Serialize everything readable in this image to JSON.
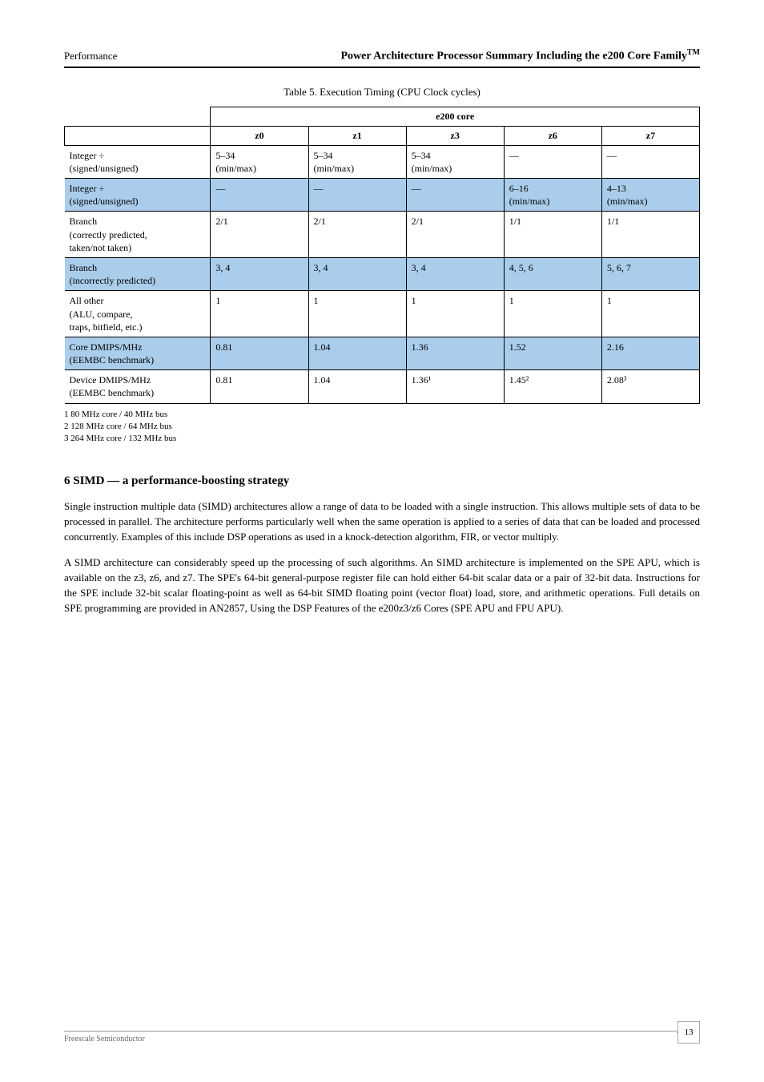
{
  "header": {
    "left": "Performance",
    "product": "Power Architecture Processor Summary Including the e200 Core Family",
    "tm": "TM"
  },
  "table": {
    "caption": "Table 5. Execution Timing (CPU Clock cycles)",
    "group_header": "e200 core",
    "columns": [
      "z0",
      "z1",
      "z3",
      "z6",
      "z7"
    ],
    "col_widths": [
      "15.4%",
      "15.4%",
      "15.4%",
      "15.4%",
      "15.4%"
    ],
    "param_col_width": "23%",
    "shade_color": "#a9cdeb",
    "border_color": "#000000",
    "font_size": 12,
    "rows": [
      {
        "shaded": false,
        "param_lines": [
          "Integer ÷",
          "(signed/unsigned)"
        ],
        "cells": [
          [
            "5–34",
            "(min/max)"
          ],
          [
            "5–34",
            "(min/max)"
          ],
          [
            "5–34",
            "(min/max)"
          ],
          [
            "—",
            ""
          ],
          [
            "—",
            ""
          ]
        ]
      },
      {
        "shaded": true,
        "param_lines": [
          "Integer ÷",
          "(signed/unsigned)"
        ],
        "cells": [
          [
            "—",
            ""
          ],
          [
            "—",
            ""
          ],
          [
            "—",
            ""
          ],
          [
            "6–16",
            "(min/max)"
          ],
          [
            "4–13",
            "(min/max)"
          ]
        ]
      },
      {
        "shaded": false,
        "param_lines": [
          "Branch",
          "(correctly predicted,",
          "taken/not taken)"
        ],
        "cells": [
          [
            "2/1",
            ""
          ],
          [
            "2/1",
            ""
          ],
          [
            "2/1",
            ""
          ],
          [
            "1/1",
            ""
          ],
          [
            "1/1",
            ""
          ]
        ]
      },
      {
        "shaded": true,
        "param_lines": [
          "Branch",
          "(incorrectly predicted)"
        ],
        "cells": [
          [
            "3, 4",
            ""
          ],
          [
            "3, 4",
            ""
          ],
          [
            "3, 4",
            ""
          ],
          [
            "4, 5, 6",
            ""
          ],
          [
            "5, 6, 7",
            ""
          ]
        ]
      },
      {
        "shaded": false,
        "param_lines": [
          "All other",
          "(ALU, compare,",
          "traps, bitfield, etc.)"
        ],
        "cells": [
          [
            "1",
            ""
          ],
          [
            "1",
            ""
          ],
          [
            "1",
            ""
          ],
          [
            "1",
            ""
          ],
          [
            "1",
            ""
          ]
        ]
      },
      {
        "shaded": true,
        "param_lines": [
          "Core DMIPS/MHz",
          "(EEMBC benchmark)"
        ],
        "cells": [
          [
            "0.81",
            ""
          ],
          [
            "1.04",
            ""
          ],
          [
            "1.36",
            ""
          ],
          [
            "1.52",
            ""
          ],
          [
            "2.16",
            ""
          ]
        ]
      },
      {
        "shaded": false,
        "param_lines": [
          "Device DMIPS/MHz",
          "(EEMBC benchmark)"
        ],
        "cells": [
          [
            "0.81",
            ""
          ],
          [
            "1.04",
            ""
          ],
          [
            "1.36¹",
            ""
          ],
          [
            "1.45²",
            ""
          ],
          [
            "2.08³",
            ""
          ]
        ]
      }
    ],
    "footnotes": [
      "1 80 MHz core / 40 MHz bus",
      "2 128 MHz core / 64 MHz bus",
      "3 264 MHz core / 132 MHz bus"
    ]
  },
  "section": {
    "title": "6   SIMD — a performance-boosting strategy",
    "paragraphs": [
      "Single instruction multiple data (SIMD) architectures allow a range of data to be loaded with a single instruction. This allows multiple sets of data to be processed in parallel. The architecture performs particularly well when the same operation is applied to a series of data that can be loaded and processed concurrently. Examples of this include DSP operations as used in a knock-detection algorithm, FIR, or vector multiply.",
      "A SIMD architecture can considerably speed up the processing of such algorithms. An SIMD architecture is implemented on the SPE APU, which is available on the z3, z6, and z7. The SPE's 64-bit general-purpose register file can hold either 64-bit scalar data or a pair of 32-bit data. Instructions for the SPE include 32-bit scalar floating-point as well as 64-bit SIMD floating point (vector float) load, store, and arithmetic operations. Full details on SPE programming are provided in AN2857, Using the DSP Features of the e200z3/z6 Cores (SPE APU and FPU APU)."
    ]
  },
  "footer": {
    "label": "Freescale Semiconductor",
    "page": "13"
  }
}
